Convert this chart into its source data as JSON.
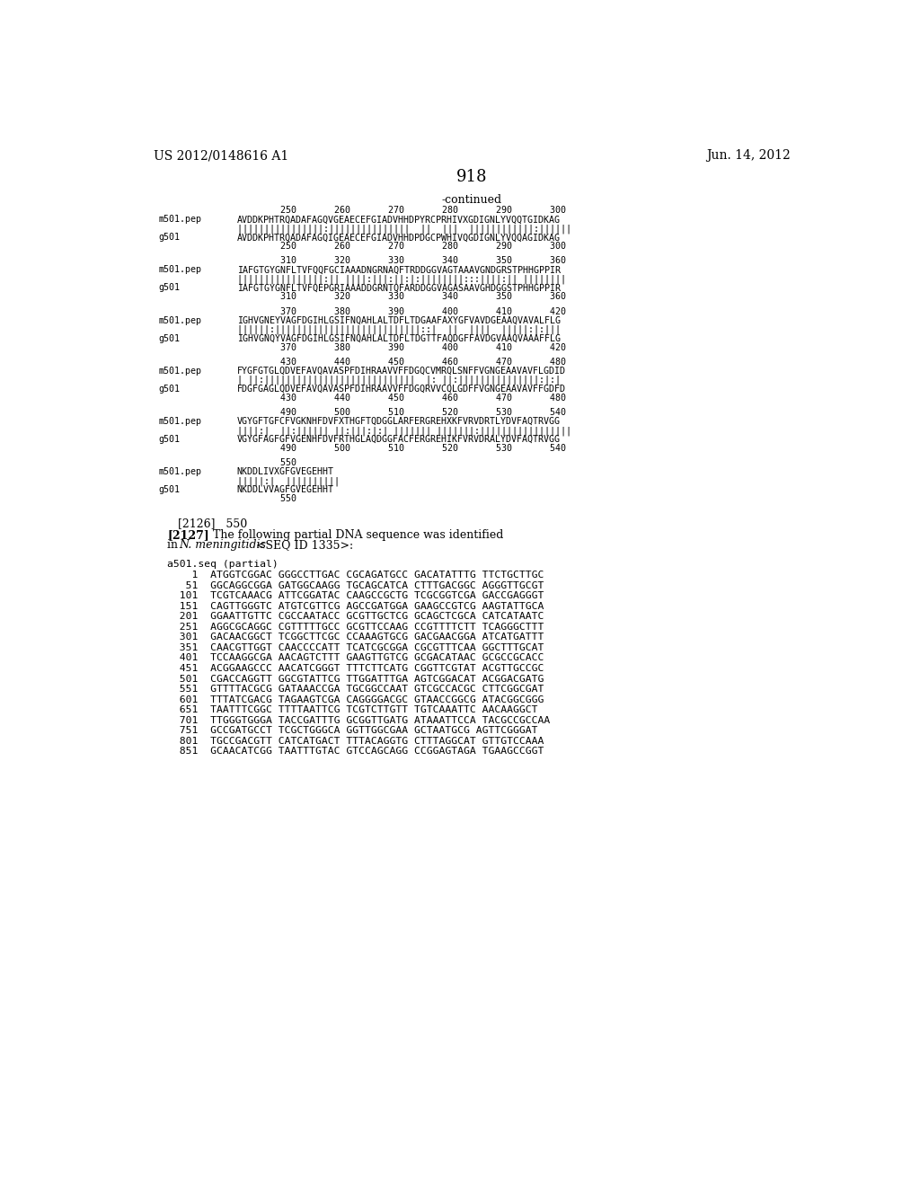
{
  "header_left": "US 2012/0148616 A1",
  "header_right": "Jun. 14, 2012",
  "page_number": "918",
  "continued_label": "-continued",
  "background_color": "#ffffff",
  "alignment_blocks": [
    {
      "numbers_top": "        250       260       270       280       290       300",
      "seq1_label": "m501.pep",
      "seq1": "AVDDKPHTRQADAFAGQVGEAECEFGIADVHHDPYRCPRHIVXGDIGNLYVQQTGIDKAG",
      "match": "||||||||||||||||:|||||||||||||||  ||  |||  ||||||||||||:||||||",
      "seq2_label": "g501",
      "seq2": "AVDDKPHTRQADAFAGQIGEAECEFGIADVHHDPDGCPWHIVQGDIGNLYVQQAGIDKAG",
      "numbers_bot": "        250       260       270       280       290       300"
    },
    {
      "numbers_top": "        310       320       330       340       350       360",
      "seq1_label": "m501.pep",
      "seq1": "IAFGTGYGNFLTVFQQFGCIAAADNGRNAQFTRDDGGVAGTAAAVGNDGRSTPHHGPPIR",
      "match": "||||||||||||||||:|| ||||:|||:||:|:||||||||:::||||:|| ||||||||",
      "seq2_label": "g501",
      "seq2": "IAFGTGYGNFLTVFQEPGRIAAADDGRNTQFARDDGGVAGASAAVGHDGGSTPHHGPPIR",
      "numbers_bot": "        310       320       330       340       350       360"
    },
    {
      "numbers_top": "        370       380       390       400       410       420",
      "seq1_label": "m501.pep",
      "seq1": "IGHVGNEYVAGFDGIHLGSIFNQAHLALTDFLTDGAAFAXYGFVAVDGEAAQVAVALFLG",
      "match": "||||||:|||||||||||||||||||||||||||::|  ||  ||||  |||||:|:|||",
      "seq2_label": "g501",
      "seq2": "IGHVGNQYVAGFDGIHLGSIFNQAHLALTDFLTDGTTFAQDGFFAVDGVAAQVAAAFFLG",
      "numbers_bot": "        370       380       390       400       410       420"
    },
    {
      "numbers_top": "        430       440       450       460       470       480",
      "seq1_label": "m501.pep",
      "seq1": "FYGFGTGLQDVEFAVQAVASPFDIHRAAVVFFDGQCVMRQLSNFFVGNGEAAVAVFLGDID",
      "match": "| ||:||||||||||||||||||||||||||||  |: ||:|||||||||||||||:|:|",
      "seq2_label": "g501",
      "seq2": "FDGFGAGLQDVEFAVQAVASPFDIHRAAVVFFDGQRVVCQLGDFFVGNGEAAVAVFFGDFD",
      "numbers_bot": "        430       440       450       460       470       480"
    },
    {
      "numbers_top": "        490       500       510       520       530       540",
      "seq1_label": "m501.pep",
      "seq1": "VGYGFTGFCFVGKNHFDVFXTHGFTQDGGLARFERGREHXKFVRVDRTLYDVFAQTRVGG",
      "match": "||||:|  ||:|||||| ||:|||:|:| ||||||| |||||||:|||||||||||||||||",
      "seq2_label": "g501",
      "seq2": "VGYGFAGFGFVGENHFDVFRTHGLAQDGGFACFERGREHIKFVRVDRALYDVFAQTRVGG",
      "numbers_bot": "        490       500       510       520       530       540"
    },
    {
      "numbers_top": "        550",
      "seq1_label": "m501.pep",
      "seq1": "NKDDLIVXGFGVEGEHHT",
      "match": "|||||:|  ||||||||||",
      "seq2_label": "g501",
      "seq2": "NKDDLVVAGFGVEGEHHT",
      "numbers_bot": "        550"
    }
  ],
  "paragraph_2126": "[2126]   550",
  "paragraph_2127_bold": "[2127]",
  "paragraph_2127_text": "    The following partial DNA sequence was identified",
  "paragraph_2127_line2_italic": "N. meningitidis",
  "paragraph_2127_line2_rest": " <SEQ ID 1335>:",
  "dna_section_label": "a501.seq (partial)",
  "dna_lines": [
    "    1  ATGGTCGGAC GGGCCTTGAC CGCAGATGCC GACATATTTG TTCTGCTTGC",
    "   51  GGCAGGCGGA GATGGCAAGG TGCAGCATCA CTTTGACGGC AGGGTTGCGT",
    "  101  TCGTCAAACG ATTCGGATAC CAAGCCGCTG TCGCGGTCGA GACCGAGGGT",
    "  151  CAGTTGGGTC ATGTCGTTCG AGCCGATGGA GAAGCCGTCG AAGTATTGCA",
    "  201  GGAATTGTTC CGCCAATACC GCGTTGCTCG GCAGCTCGCA CATCATAATC",
    "  251  AGGCGCAGGC CGTTTTTGCC GCGTTCCAAG CCGTTTTCTT TCAGGGCTTT",
    "  301  GACAACGGCT TCGGCTTCGC CCAAAGTGCG GACGAACGGA ATCATGATTT",
    "  351  CAACGTTGGT CAACCCCATT TCATCGCGGA CGCGTTTCAA GGCTTTGCAT",
    "  401  TCCAAGGCGA AACAGTCTTT GAAGTTGTCG GCGACATAAC GCGCCGCACC",
    "  451  ACGGAAGCCC AACATCGGGT TTTCTTCATG CGGTTCGTAT ACGTTGCCGC",
    "  501  CGACCAGGTT GGCGTATTCG TTGGATTTGA AGTCGGACAT ACGGACGATG",
    "  551  GTTTTACGCG GATAAACCGA TGCGGCCAAT GTCGCCACGC CTTCGGCGAT",
    "  601  TTTATCGACG TAGAAGTCGA CAGGGGACGC GTAACCGGCG ATACGGCGGG",
    "  651  TAATTTCGGC TTTTAATTCG TCGTCTTGTT TGTCAAATTC AACAAGGCT",
    "  701  TTGGGTGGGA TACCGATTTG GCGGTTGATG ATAAATTCCA TACGCCGCCAA",
    "  751  GCCGATGCCT TCGCTGGGCA GGTTGGCGAA GCTAATGCG AGTTCGGGAT",
    "  801  TGCCGACGTT CATCATGACT TTTACAGGTG CTTTAGGCAT GTTGTCCAAA",
    "  851  GCAACATCGG TAATTTGTAC GTCCAGCAGG CCGGAGTAGA TGAAGCCGGT"
  ]
}
